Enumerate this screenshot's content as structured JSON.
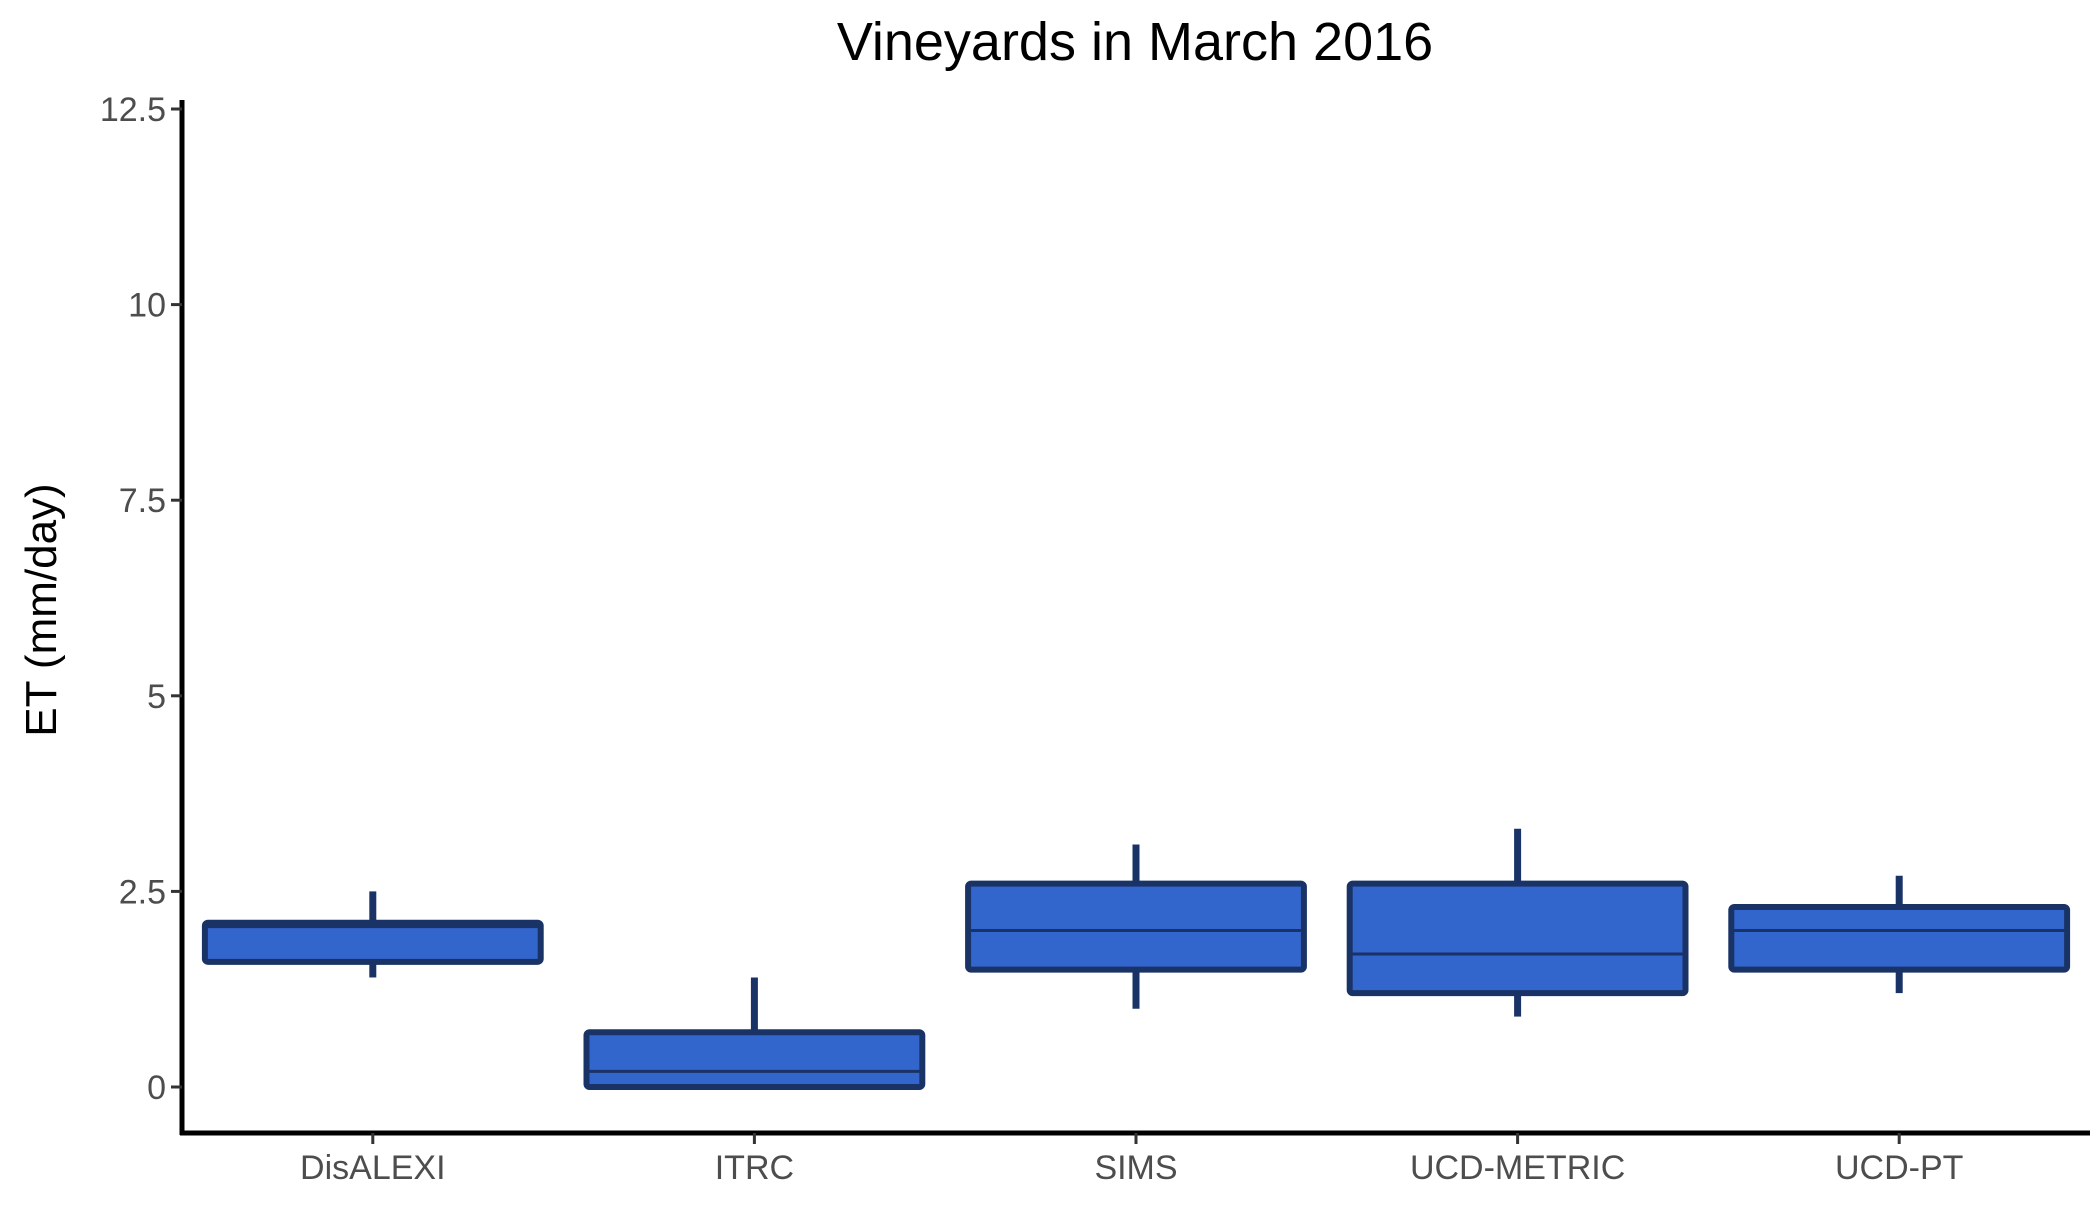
{
  "chart_data": {
    "type": "box",
    "title": "Vineyards in March 2016",
    "xlabel": "",
    "ylabel": "ET (mm/day)",
    "ylim": [
      -0.6,
      12.5
    ],
    "yticks": [
      0,
      2.5,
      5,
      7.5,
      10,
      12.5
    ],
    "ytick_labels": [
      "0",
      "2.5",
      "5",
      "7.5",
      "10",
      "12.5"
    ],
    "categories": [
      "DisALEXI",
      "ITRC",
      "SIMS",
      "UCD-METRIC",
      "UCD-PT"
    ],
    "boxes": [
      {
        "category": "DisALEXI",
        "whisker_low": 1.4,
        "q1": 1.6,
        "median": 2.05,
        "q3": 2.1,
        "whisker_high": 2.5
      },
      {
        "category": "ITRC",
        "whisker_low": 0.0,
        "q1": 0.0,
        "median": 0.2,
        "q3": 0.7,
        "whisker_high": 1.4
      },
      {
        "category": "SIMS",
        "whisker_low": 1.0,
        "q1": 1.5,
        "median": 2.0,
        "q3": 2.6,
        "whisker_high": 3.1
      },
      {
        "category": "UCD-METRIC",
        "whisker_low": 0.9,
        "q1": 1.2,
        "median": 1.7,
        "q3": 2.6,
        "whisker_high": 3.3
      },
      {
        "category": "UCD-PT",
        "whisker_low": 1.2,
        "q1": 1.5,
        "median": 2.0,
        "q3": 2.3,
        "whisker_high": 2.7
      }
    ],
    "colors": {
      "box_fill": "#3366cc",
      "box_line": "#1a3366",
      "axis": "#000000"
    },
    "grid": false,
    "legend": "none"
  }
}
